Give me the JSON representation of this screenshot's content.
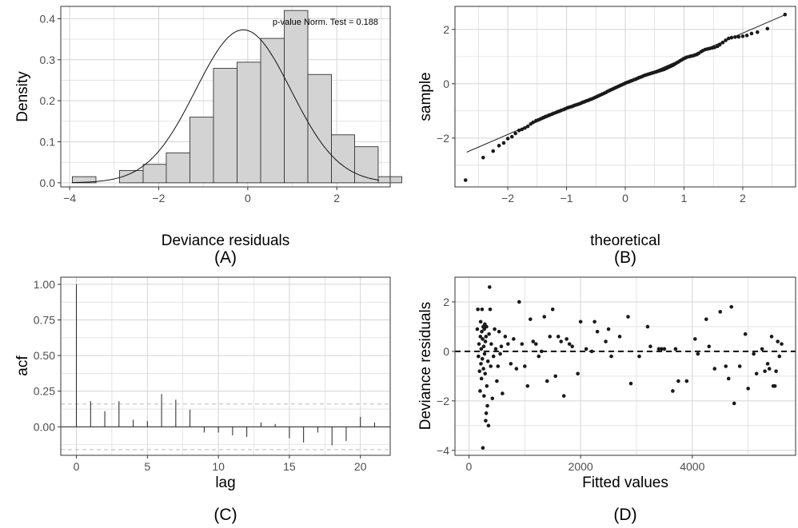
{
  "chart_data": [
    {
      "type": "bar",
      "panel_label": "(A)",
      "xlabel": "Deviance residuals",
      "ylabel": "Density",
      "annotation": "p-value Norm. Test = 0.188",
      "xlim": [
        -4.2,
        3.2
      ],
      "ylim": [
        -0.01,
        0.43
      ],
      "xticks": [
        -4,
        -2,
        0,
        2
      ],
      "yticks": [
        0.0,
        0.1,
        0.2,
        0.3,
        0.4
      ],
      "ytick_labels": [
        "0.0",
        "0.1",
        "0.2",
        "0.3",
        "0.4"
      ],
      "grid": true,
      "bins": [
        {
          "x0": -3.94,
          "x1": -3.41,
          "value": 0.015
        },
        {
          "x0": -3.41,
          "x1": -2.88,
          "value": 0.0
        },
        {
          "x0": -2.88,
          "x1": -2.35,
          "value": 0.03
        },
        {
          "x0": -2.35,
          "x1": -1.83,
          "value": 0.045
        },
        {
          "x0": -1.83,
          "x1": -1.3,
          "value": 0.073
        },
        {
          "x0": -1.3,
          "x1": -0.77,
          "value": 0.16
        },
        {
          "x0": -0.77,
          "x1": -0.24,
          "value": 0.279
        },
        {
          "x0": -0.24,
          "x1": 0.29,
          "value": 0.294
        },
        {
          "x0": 0.29,
          "x1": 0.82,
          "value": 0.352
        },
        {
          "x0": 0.82,
          "x1": 1.35,
          "value": 0.42
        },
        {
          "x0": 1.35,
          "x1": 1.88,
          "value": 0.264
        },
        {
          "x0": 1.88,
          "x1": 2.4,
          "value": 0.117
        },
        {
          "x0": 2.4,
          "x1": 2.93,
          "value": 0.088
        },
        {
          "x0": 2.93,
          "x1": 3.46,
          "value": 0.015
        }
      ],
      "normal_curve": {
        "mean": -0.1,
        "sd": 1.07
      }
    },
    {
      "type": "scatter",
      "panel_label": "(B)",
      "xlabel": "theoretical",
      "ylabel": "sample",
      "xlim": [
        -2.9,
        2.9
      ],
      "ylim": [
        -3.8,
        2.85
      ],
      "xticks": [
        -2,
        -1,
        0,
        1,
        2
      ],
      "yticks": [
        -2,
        0,
        2
      ],
      "grid": true,
      "reference_line": {
        "x": [
          -2.7,
          2.7
        ],
        "y": [
          -2.52,
          2.52
        ]
      },
      "points": [
        [
          -2.72,
          -3.55
        ],
        [
          -2.42,
          -2.72
        ],
        [
          -2.25,
          -2.48
        ],
        [
          -2.15,
          -2.28
        ],
        [
          -2.07,
          -2.18
        ],
        [
          -2.0,
          -2.02
        ],
        [
          -1.93,
          -1.95
        ],
        [
          -1.87,
          -1.83
        ],
        [
          -1.81,
          -1.72
        ],
        [
          -1.76,
          -1.68
        ],
        [
          -1.71,
          -1.63
        ],
        [
          -1.66,
          -1.57
        ],
        [
          -1.61,
          -1.48
        ],
        [
          -1.57,
          -1.42
        ],
        [
          -1.52,
          -1.36
        ],
        [
          -1.48,
          -1.33
        ],
        [
          -1.44,
          -1.29
        ],
        [
          -1.4,
          -1.25
        ],
        [
          -1.36,
          -1.21
        ],
        [
          -1.32,
          -1.18
        ],
        [
          -1.29,
          -1.15
        ],
        [
          -1.25,
          -1.12
        ],
        [
          -1.22,
          -1.09
        ],
        [
          -1.18,
          -1.06
        ],
        [
          -1.15,
          -1.03
        ],
        [
          -1.12,
          -1.01
        ],
        [
          -1.09,
          -0.98
        ],
        [
          -1.05,
          -0.95
        ],
        [
          -1.02,
          -0.92
        ],
        [
          -0.99,
          -0.89
        ],
        [
          -0.96,
          -0.87
        ],
        [
          -0.93,
          -0.85
        ],
        [
          -0.9,
          -0.83
        ],
        [
          -0.87,
          -0.8
        ],
        [
          -0.84,
          -0.78
        ],
        [
          -0.81,
          -0.76
        ],
        [
          -0.78,
          -0.74
        ],
        [
          -0.75,
          -0.71
        ],
        [
          -0.72,
          -0.68
        ],
        [
          -0.69,
          -0.66
        ],
        [
          -0.66,
          -0.63
        ],
        [
          -0.63,
          -0.61
        ],
        [
          -0.6,
          -0.58
        ],
        [
          -0.57,
          -0.56
        ],
        [
          -0.54,
          -0.53
        ],
        [
          -0.51,
          -0.5
        ],
        [
          -0.48,
          -0.47
        ],
        [
          -0.45,
          -0.44
        ],
        [
          -0.42,
          -0.41
        ],
        [
          -0.39,
          -0.38
        ],
        [
          -0.36,
          -0.35
        ],
        [
          -0.33,
          -0.32
        ],
        [
          -0.3,
          -0.28
        ],
        [
          -0.27,
          -0.25
        ],
        [
          -0.24,
          -0.22
        ],
        [
          -0.21,
          -0.19
        ],
        [
          -0.18,
          -0.16
        ],
        [
          -0.15,
          -0.13
        ],
        [
          -0.12,
          -0.1
        ],
        [
          -0.09,
          -0.07
        ],
        [
          -0.06,
          -0.04
        ],
        [
          -0.03,
          -0.01
        ],
        [
          0.0,
          0.02
        ],
        [
          0.03,
          0.05
        ],
        [
          0.06,
          0.07
        ],
        [
          0.09,
          0.1
        ],
        [
          0.12,
          0.12
        ],
        [
          0.15,
          0.15
        ],
        [
          0.18,
          0.17
        ],
        [
          0.21,
          0.2
        ],
        [
          0.24,
          0.23
        ],
        [
          0.27,
          0.25
        ],
        [
          0.3,
          0.28
        ],
        [
          0.33,
          0.31
        ],
        [
          0.36,
          0.33
        ],
        [
          0.39,
          0.35
        ],
        [
          0.42,
          0.37
        ],
        [
          0.45,
          0.39
        ],
        [
          0.48,
          0.41
        ],
        [
          0.51,
          0.43
        ],
        [
          0.54,
          0.45
        ],
        [
          0.57,
          0.47
        ],
        [
          0.6,
          0.49
        ],
        [
          0.63,
          0.51
        ],
        [
          0.66,
          0.53
        ],
        [
          0.69,
          0.56
        ],
        [
          0.72,
          0.59
        ],
        [
          0.75,
          0.62
        ],
        [
          0.78,
          0.65
        ],
        [
          0.81,
          0.68
        ],
        [
          0.84,
          0.72
        ],
        [
          0.87,
          0.76
        ],
        [
          0.9,
          0.8
        ],
        [
          0.93,
          0.84
        ],
        [
          0.96,
          0.88
        ],
        [
          0.99,
          0.92
        ],
        [
          1.02,
          0.95
        ],
        [
          1.05,
          0.98
        ],
        [
          1.09,
          1.0
        ],
        [
          1.12,
          1.02
        ],
        [
          1.15,
          1.03
        ],
        [
          1.18,
          1.05
        ],
        [
          1.22,
          1.08
        ],
        [
          1.25,
          1.12
        ],
        [
          1.29,
          1.18
        ],
        [
          1.32,
          1.22
        ],
        [
          1.36,
          1.26
        ],
        [
          1.4,
          1.28
        ],
        [
          1.44,
          1.3
        ],
        [
          1.48,
          1.32
        ],
        [
          1.52,
          1.34
        ],
        [
          1.57,
          1.38
        ],
        [
          1.61,
          1.44
        ],
        [
          1.66,
          1.52
        ],
        [
          1.71,
          1.6
        ],
        [
          1.76,
          1.67
        ],
        [
          1.81,
          1.7
        ],
        [
          1.87,
          1.72
        ],
        [
          1.93,
          1.73
        ],
        [
          2.0,
          1.75
        ],
        [
          2.07,
          1.78
        ],
        [
          2.15,
          1.85
        ],
        [
          2.25,
          1.9
        ],
        [
          2.42,
          2.03
        ],
        [
          2.72,
          2.55
        ]
      ]
    },
    {
      "type": "bar",
      "panel_label": "(C)",
      "xlabel": "lag",
      "ylabel": "acf",
      "xlim": [
        -1.1,
        22.1
      ],
      "ylim": [
        -0.2,
        1.05
      ],
      "xticks": [
        0,
        5,
        10,
        15,
        20
      ],
      "yticks": [
        0.0,
        0.25,
        0.5,
        0.75,
        1.0
      ],
      "ytick_labels": [
        "0.00",
        "0.25",
        "0.50",
        "0.75",
        "1.00"
      ],
      "grid": true,
      "confidence_bounds": [
        0.16,
        -0.16
      ],
      "categories": [
        0,
        1,
        2,
        3,
        4,
        5,
        6,
        7,
        8,
        9,
        10,
        11,
        12,
        13,
        14,
        15,
        16,
        17,
        18,
        19,
        20,
        21
      ],
      "values": [
        1.0,
        0.18,
        0.11,
        0.18,
        0.05,
        0.04,
        0.23,
        0.19,
        0.12,
        -0.04,
        -0.04,
        -0.06,
        -0.07,
        0.03,
        0.02,
        -0.08,
        -0.11,
        -0.04,
        -0.13,
        -0.1,
        0.07,
        0.03
      ]
    },
    {
      "type": "scatter",
      "panel_label": "(D)",
      "xlabel": "Fitted values",
      "ylabel": "Deviance residuals",
      "xlim": [
        -250,
        5850
      ],
      "ylim": [
        -4.2,
        3.0
      ],
      "xticks": [
        0,
        2000,
        4000
      ],
      "yticks": [
        -4,
        -2,
        0,
        2
      ],
      "grid": true,
      "reference_line_y": 0,
      "points": [
        [
          150,
          0.9
        ],
        [
          160,
          1.7
        ],
        [
          170,
          -0.2
        ],
        [
          180,
          0.3
        ],
        [
          190,
          -0.8
        ],
        [
          200,
          -1.6
        ],
        [
          205,
          0.6
        ],
        [
          210,
          1.2
        ],
        [
          215,
          -0.5
        ],
        [
          220,
          0.1
        ],
        [
          225,
          -1.1
        ],
        [
          230,
          0.8
        ],
        [
          235,
          1.7
        ],
        [
          240,
          -0.3
        ],
        [
          245,
          0.5
        ],
        [
          250,
          -3.9
        ],
        [
          255,
          1.0
        ],
        [
          260,
          -0.7
        ],
        [
          265,
          0.2
        ],
        [
          270,
          -1.8
        ],
        [
          275,
          0.9
        ],
        [
          280,
          -0.1
        ],
        [
          285,
          1.1
        ],
        [
          290,
          -0.9
        ],
        [
          295,
          0.4
        ],
        [
          300,
          -2.8
        ],
        [
          305,
          0.6
        ],
        [
          310,
          -2.5
        ],
        [
          315,
          1.0
        ],
        [
          320,
          -1.4
        ],
        [
          330,
          -2.2
        ],
        [
          340,
          -0.4
        ],
        [
          350,
          -3.0
        ],
        [
          360,
          0.7
        ],
        [
          370,
          2.6
        ],
        [
          380,
          1.7
        ],
        [
          390,
          -0.6
        ],
        [
          400,
          0.3
        ],
        [
          420,
          -1.9
        ],
        [
          440,
          -0.2
        ],
        [
          460,
          0.9
        ],
        [
          480,
          0.1
        ],
        [
          500,
          -1.2
        ],
        [
          520,
          -0.6
        ],
        [
          540,
          0.8
        ],
        [
          560,
          -0.1
        ],
        [
          580,
          0.2
        ],
        [
          600,
          -1.7
        ],
        [
          650,
          0.6
        ],
        [
          700,
          0.3
        ],
        [
          750,
          -0.5
        ],
        [
          800,
          0.5
        ],
        [
          850,
          -0.7
        ],
        [
          900,
          2.0
        ],
        [
          950,
          0.3
        ],
        [
          1000,
          -0.6
        ],
        [
          1050,
          -1.4
        ],
        [
          1100,
          1.3
        ],
        [
          1150,
          0.4
        ],
        [
          1200,
          0.3
        ],
        [
          1250,
          -0.2
        ],
        [
          1300,
          0.0
        ],
        [
          1350,
          1.4
        ],
        [
          1400,
          -1.2
        ],
        [
          1450,
          0.6
        ],
        [
          1500,
          1.7
        ],
        [
          1550,
          -1.0
        ],
        [
          1600,
          0.6
        ],
        [
          1650,
          0.4
        ],
        [
          1700,
          -1.8
        ],
        [
          1750,
          0.5
        ],
        [
          1800,
          0.3
        ],
        [
          1850,
          0.2
        ],
        [
          1950,
          -0.9
        ],
        [
          2000,
          1.2
        ],
        [
          2100,
          0.1
        ],
        [
          2200,
          0.0
        ],
        [
          2250,
          1.2
        ],
        [
          2300,
          0.8
        ],
        [
          2450,
          0.4
        ],
        [
          2500,
          0.9
        ],
        [
          2550,
          -0.2
        ],
        [
          2700,
          0.6
        ],
        [
          2850,
          1.4
        ],
        [
          2900,
          -1.3
        ],
        [
          3050,
          -0.2
        ],
        [
          3200,
          1.0
        ],
        [
          3250,
          0.2
        ],
        [
          3400,
          0.1
        ],
        [
          3450,
          0.1
        ],
        [
          3500,
          0.1
        ],
        [
          3650,
          -1.6
        ],
        [
          3700,
          0.1
        ],
        [
          3750,
          -1.2
        ],
        [
          3900,
          -1.2
        ],
        [
          4050,
          0.5
        ],
        [
          4100,
          -0.1
        ],
        [
          4250,
          1.3
        ],
        [
          4300,
          0.2
        ],
        [
          4400,
          -0.7
        ],
        [
          4500,
          1.6
        ],
        [
          4600,
          -0.6
        ],
        [
          4650,
          -1.1
        ],
        [
          4700,
          1.8
        ],
        [
          4750,
          -2.1
        ],
        [
          4850,
          -0.6
        ],
        [
          4950,
          0.7
        ],
        [
          5000,
          -1.5
        ],
        [
          5100,
          -0.1
        ],
        [
          5150,
          -0.9
        ],
        [
          5250,
          0.1
        ],
        [
          5300,
          -0.8
        ],
        [
          5350,
          -0.5
        ],
        [
          5380,
          -0.7
        ],
        [
          5420,
          0.6
        ],
        [
          5450,
          -1.4
        ],
        [
          5480,
          -1.4
        ],
        [
          5500,
          -0.8
        ],
        [
          5530,
          0.4
        ],
        [
          5560,
          -0.2
        ],
        [
          5600,
          0.3
        ]
      ]
    }
  ]
}
